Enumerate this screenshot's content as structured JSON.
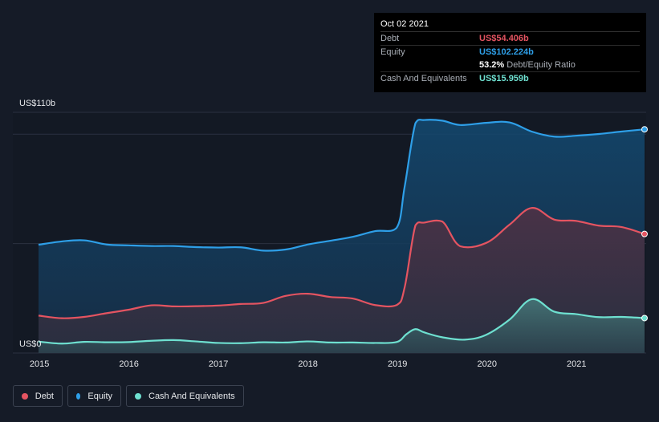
{
  "chart_data": {
    "type": "area",
    "y_top_label": "US$110b",
    "y_zero_label": "US$0",
    "ylim": [
      0,
      110
    ],
    "x_range": [
      2014.99,
      2021.76
    ],
    "x_ticks": [
      "2015",
      "2016",
      "2017",
      "2018",
      "2019",
      "2020",
      "2021"
    ],
    "series": [
      {
        "name": "Equity",
        "color": "#2e9fe8",
        "points": [
          [
            2014.99,
            49.5
          ],
          [
            2015.25,
            51
          ],
          [
            2015.5,
            51.5
          ],
          [
            2015.75,
            49.6
          ],
          [
            2016.0,
            49.2
          ],
          [
            2016.25,
            48.9
          ],
          [
            2016.5,
            48.9
          ],
          [
            2016.75,
            48.4
          ],
          [
            2017.0,
            48.2
          ],
          [
            2017.25,
            48.3
          ],
          [
            2017.5,
            46.8
          ],
          [
            2017.75,
            47.3
          ],
          [
            2018.0,
            49.6
          ],
          [
            2018.25,
            51.3
          ],
          [
            2018.5,
            53.1
          ],
          [
            2018.75,
            55.7
          ],
          [
            2018.99,
            57.2
          ],
          [
            2019.08,
            76
          ],
          [
            2019.2,
            105
          ],
          [
            2019.3,
            106.5
          ],
          [
            2019.5,
            106.2
          ],
          [
            2019.7,
            104.2
          ],
          [
            2019.99,
            105.2
          ],
          [
            2020.25,
            105.4
          ],
          [
            2020.5,
            101.2
          ],
          [
            2020.75,
            98.9
          ],
          [
            2020.99,
            99.3
          ],
          [
            2021.25,
            100.1
          ],
          [
            2021.5,
            101.2
          ],
          [
            2021.76,
            102.224
          ]
        ]
      },
      {
        "name": "Debt",
        "color": "#e45461",
        "points": [
          [
            2014.99,
            17.1
          ],
          [
            2015.25,
            15.9
          ],
          [
            2015.5,
            16.5
          ],
          [
            2015.75,
            18.2
          ],
          [
            2016.0,
            19.8
          ],
          [
            2016.25,
            21.8
          ],
          [
            2016.5,
            21.3
          ],
          [
            2016.75,
            21.4
          ],
          [
            2017.0,
            21.7
          ],
          [
            2017.25,
            22.4
          ],
          [
            2017.5,
            22.9
          ],
          [
            2017.75,
            26.1
          ],
          [
            2018.0,
            27.1
          ],
          [
            2018.25,
            25.6
          ],
          [
            2018.5,
            24.9
          ],
          [
            2018.75,
            21.9
          ],
          [
            2018.99,
            21.9
          ],
          [
            2019.08,
            30
          ],
          [
            2019.2,
            58.3
          ],
          [
            2019.3,
            59.6
          ],
          [
            2019.5,
            60.1
          ],
          [
            2019.7,
            48.8
          ],
          [
            2019.99,
            50.3
          ],
          [
            2020.25,
            58.6
          ],
          [
            2020.5,
            66.3
          ],
          [
            2020.75,
            61
          ],
          [
            2020.99,
            60.4
          ],
          [
            2021.25,
            58.2
          ],
          [
            2021.5,
            57.6
          ],
          [
            2021.76,
            54.406
          ]
        ]
      },
      {
        "name": "Cash And Equivalents",
        "color": "#6ee0d0",
        "points": [
          [
            2014.99,
            5.2
          ],
          [
            2015.25,
            4.3
          ],
          [
            2015.5,
            5.1
          ],
          [
            2015.75,
            4.9
          ],
          [
            2016.0,
            5
          ],
          [
            2016.25,
            5.6
          ],
          [
            2016.5,
            5.9
          ],
          [
            2016.75,
            5.3
          ],
          [
            2017.0,
            4.6
          ],
          [
            2017.25,
            4.5
          ],
          [
            2017.5,
            4.9
          ],
          [
            2017.75,
            4.8
          ],
          [
            2018.0,
            5.3
          ],
          [
            2018.25,
            4.8
          ],
          [
            2018.5,
            4.8
          ],
          [
            2018.75,
            4.6
          ],
          [
            2018.99,
            5
          ],
          [
            2019.1,
            8.6
          ],
          [
            2019.2,
            10.9
          ],
          [
            2019.3,
            9.4
          ],
          [
            2019.5,
            7.2
          ],
          [
            2019.75,
            6.1
          ],
          [
            2019.99,
            8.3
          ],
          [
            2020.25,
            15.2
          ],
          [
            2020.5,
            24.6
          ],
          [
            2020.75,
            18.9
          ],
          [
            2020.99,
            17.8
          ],
          [
            2021.25,
            16.4
          ],
          [
            2021.5,
            16.5
          ],
          [
            2021.76,
            15.959
          ]
        ]
      }
    ]
  },
  "tooltip": {
    "date": "Oct 02 2021",
    "debt_label": "Debt",
    "debt_value": "US$54.406b",
    "equity_label": "Equity",
    "equity_value": "US$102.224b",
    "ratio_value": "53.2%",
    "ratio_label": "Debt/Equity Ratio",
    "cash_label": "Cash And Equivalents",
    "cash_value": "US$15.959b"
  },
  "legend": {
    "debt": "Debt",
    "equity": "Equity",
    "cash": "Cash And Equivalents"
  },
  "colors": {
    "debt": "#e45461",
    "equity": "#2e9fe8",
    "cash": "#6ee0d0",
    "background": "#151b27"
  }
}
